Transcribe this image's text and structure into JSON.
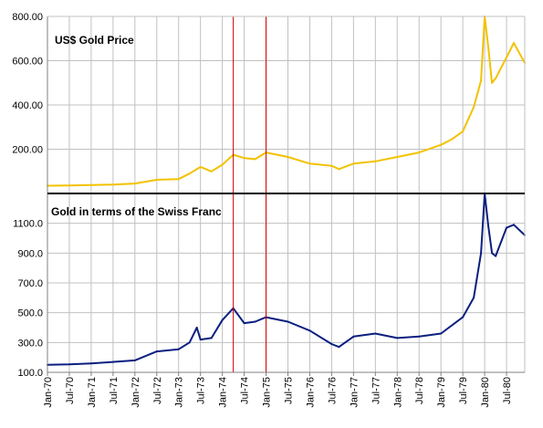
{
  "chart_data": [
    {
      "type": "line",
      "title": "US$ Gold Price",
      "ylim": [
        0,
        800
      ],
      "y_ticks": [
        "200.00",
        "400.00",
        "600.00",
        "800.00"
      ],
      "y_tick_values": [
        200,
        400,
        600,
        800
      ],
      "grid": true,
      "series": [
        {
          "color": "#f2c200",
          "x": [
            "Jan-70",
            "Jul-70",
            "Jan-71",
            "Jul-71",
            "Jan-72",
            "Jul-72",
            "Jan-73",
            "Apr-73",
            "Jul-73",
            "Oct-73",
            "Jan-74",
            "Apr-74",
            "Jul-74",
            "Oct-74",
            "Jan-75",
            "Jul-75",
            "Jan-76",
            "Jul-76",
            "Sep-76",
            "Jan-77",
            "Jul-77",
            "Jan-78",
            "Jul-78",
            "Jan-79",
            "Apr-79",
            "Jul-79",
            "Oct-79",
            "Dec-79",
            "Jan-80",
            "Feb-80",
            "Mar-80",
            "Apr-80",
            "Jul-80",
            "Sep-80",
            "Dec-80"
          ],
          "values": [
            35,
            36,
            38,
            40,
            45,
            62,
            65,
            90,
            120,
            100,
            130,
            175,
            160,
            155,
            185,
            165,
            135,
            125,
            110,
            135,
            145,
            165,
            185,
            220,
            245,
            280,
            390,
            510,
            800,
            660,
            500,
            520,
            615,
            680,
            590
          ]
        }
      ]
    },
    {
      "type": "line",
      "title": "Gold in terms of the Swiss Franc",
      "ylim": [
        100,
        1300
      ],
      "y_ticks": [
        "100.0",
        "300.0",
        "500.0",
        "700.0",
        "900.0",
        "1100.0"
      ],
      "y_tick_values": [
        100,
        300,
        500,
        700,
        900,
        1100
      ],
      "grid": true,
      "series": [
        {
          "color": "#0a1f80",
          "x": [
            "Jan-70",
            "Jul-70",
            "Jan-71",
            "Jul-71",
            "Jan-72",
            "Jul-72",
            "Jan-73",
            "Apr-73",
            "Jun-73",
            "Jul-73",
            "Oct-73",
            "Jan-74",
            "Apr-74",
            "Jul-74",
            "Oct-74",
            "Jan-75",
            "Jul-75",
            "Jan-76",
            "Jul-76",
            "Sep-76",
            "Jan-77",
            "Jul-77",
            "Jan-78",
            "Jul-78",
            "Jan-79",
            "Jul-79",
            "Oct-79",
            "Dec-79",
            "Jan-80",
            "Feb-80",
            "Mar-80",
            "Apr-80",
            "Jul-80",
            "Sep-80",
            "Dec-80"
          ],
          "values": [
            150,
            153,
            160,
            170,
            180,
            240,
            255,
            300,
            400,
            320,
            330,
            450,
            530,
            430,
            440,
            470,
            440,
            380,
            290,
            270,
            340,
            360,
            330,
            340,
            360,
            470,
            600,
            900,
            1300,
            1080,
            900,
            880,
            1070,
            1090,
            1020
          ]
        }
      ]
    }
  ],
  "x_tick_labels": [
    "Jan-70",
    "Jul-70",
    "Jan-71",
    "Jul-71",
    "Jan-72",
    "Jul-72",
    "Jan-73",
    "Jul-73",
    "Jan-74",
    "Jul-74",
    "Jan-75",
    "Jul-75",
    "Jan-76",
    "Jul-76",
    "Jan-77",
    "Jul-77",
    "Jan-78",
    "Jul-78",
    "Jan-79",
    "Jul-79",
    "Jan-80",
    "Jul-80"
  ],
  "markers": [
    "Apr-74",
    "Jan-75"
  ],
  "marker_color": "#cc0000"
}
